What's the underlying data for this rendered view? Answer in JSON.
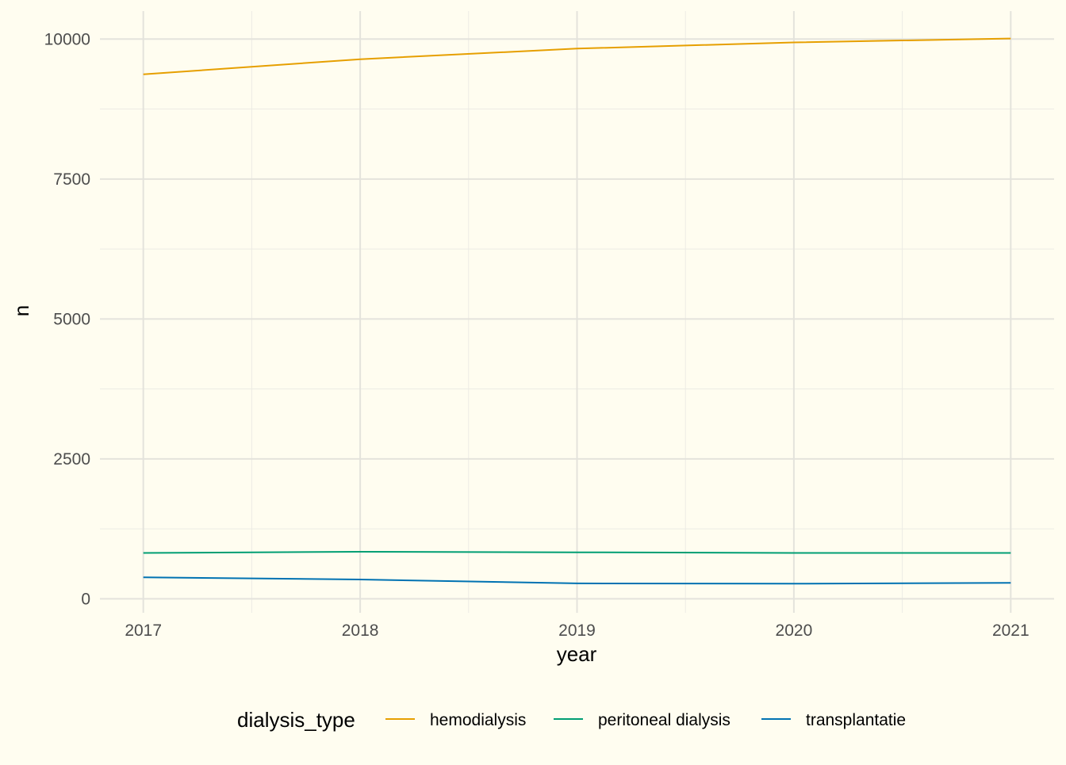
{
  "chart_data": {
    "type": "line",
    "xlabel": "year",
    "ylabel": "n",
    "x_ticks": [
      "2017",
      "2018",
      "2019",
      "2020",
      "2021"
    ],
    "y_ticks": [
      "0",
      "2500",
      "5000",
      "7500",
      "10000"
    ],
    "xlim": [
      2016.8,
      2021.2
    ],
    "ylim": [
      -250,
      10500
    ],
    "grid": true,
    "legend_title": "dialysis_type",
    "legend_position": "bottom",
    "x": [
      2017,
      2018,
      2019,
      2020,
      2021
    ],
    "series": [
      {
        "name": "hemodialysis",
        "color": "#E69F00",
        "values": [
          9370,
          9640,
          9830,
          9940,
          10010
        ]
      },
      {
        "name": "peritoneal dialysis",
        "color": "#009E73",
        "values": [
          820,
          840,
          830,
          820,
          820
        ]
      },
      {
        "name": "transplantatie",
        "color": "#0072B2",
        "values": [
          385,
          345,
          275,
          270,
          285
        ]
      }
    ]
  }
}
